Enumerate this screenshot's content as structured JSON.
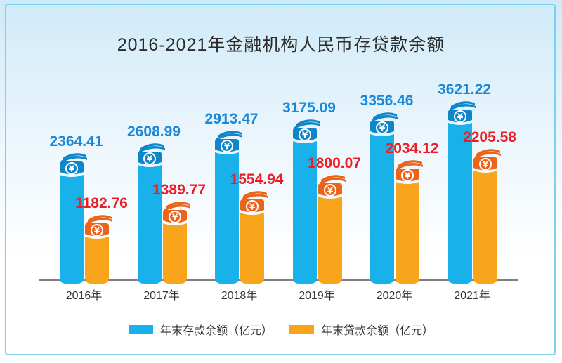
{
  "title": "2016-2021年金融机构人民币存贷款余额",
  "frame": {
    "border_color": "#7fd0f0"
  },
  "axis": {
    "line_color": "#7f7f7f"
  },
  "currency_icon": "¥",
  "chart_data": {
    "type": "bar",
    "title": "2016-2021年金融机构人民币存贷款余额",
    "categories": [
      "2016年",
      "2017年",
      "2018年",
      "2019年",
      "2020年",
      "2021年"
    ],
    "series": [
      {
        "name": "年末存款余额（亿元）",
        "values": [
          2364.41,
          2608.99,
          2913.47,
          3175.09,
          3356.46,
          3621.22
        ],
        "body_color": "#18b1e9",
        "cap_color": "#0e86c9",
        "label_color": "#1a87d9"
      },
      {
        "name": "年末贷款余额（亿元）",
        "values": [
          1182.76,
          1389.77,
          1554.94,
          1800.07,
          2034.12,
          2205.58
        ],
        "body_color": "#f8a51b",
        "cap_color": "#eb641b",
        "label_color": "#ed1c24"
      }
    ],
    "xlabel": "",
    "ylabel": "",
    "grid": false,
    "value_labels": true,
    "legend_position": "bottom"
  }
}
